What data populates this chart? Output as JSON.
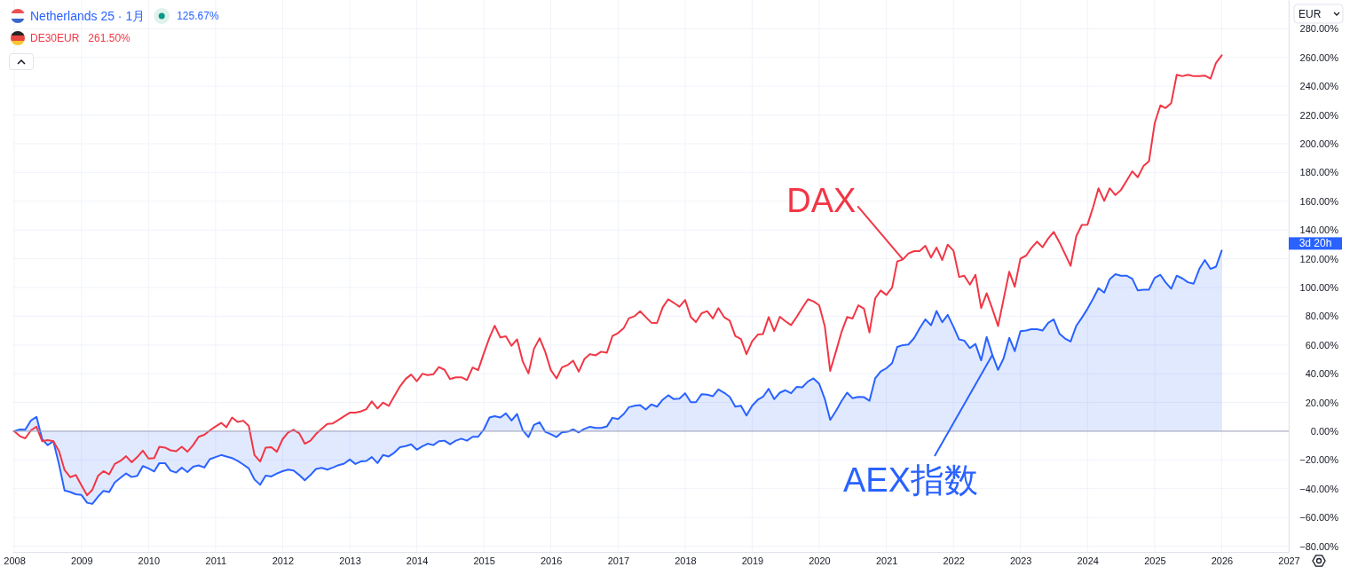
{
  "chart_data": {
    "type": "line",
    "x": [
      "2008-01",
      "2008-02",
      "2008-03",
      "2008-04",
      "2008-05",
      "2008-06",
      "2008-07",
      "2008-08",
      "2008-09",
      "2008-10",
      "2008-11",
      "2008-12",
      "2009-01",
      "2009-02",
      "2009-03",
      "2009-04",
      "2009-05",
      "2009-06",
      "2009-07",
      "2009-08",
      "2009-09",
      "2009-10",
      "2009-11",
      "2009-12",
      "2010-01",
      "2010-02",
      "2010-03",
      "2010-04",
      "2010-05",
      "2010-06",
      "2010-07",
      "2010-08",
      "2010-09",
      "2010-10",
      "2010-11",
      "2010-12",
      "2011-01",
      "2011-02",
      "2011-03",
      "2011-04",
      "2011-05",
      "2011-06",
      "2011-07",
      "2011-08",
      "2011-09",
      "2011-10",
      "2011-11",
      "2011-12",
      "2012-01",
      "2012-02",
      "2012-03",
      "2012-04",
      "2012-05",
      "2012-06",
      "2012-07",
      "2012-08",
      "2012-09",
      "2012-10",
      "2012-11",
      "2012-12",
      "2013-01",
      "2013-02",
      "2013-03",
      "2013-04",
      "2013-05",
      "2013-06",
      "2013-07",
      "2013-08",
      "2013-09",
      "2013-10",
      "2013-11",
      "2013-12",
      "2014-01",
      "2014-02",
      "2014-03",
      "2014-04",
      "2014-05",
      "2014-06",
      "2014-07",
      "2014-08",
      "2014-09",
      "2014-10",
      "2014-11",
      "2014-12",
      "2015-01",
      "2015-02",
      "2015-03",
      "2015-04",
      "2015-05",
      "2015-06",
      "2015-07",
      "2015-08",
      "2015-09",
      "2015-10",
      "2015-11",
      "2015-12",
      "2016-01",
      "2016-02",
      "2016-03",
      "2016-04",
      "2016-05",
      "2016-06",
      "2016-07",
      "2016-08",
      "2016-09",
      "2016-10",
      "2016-11",
      "2016-12",
      "2017-01",
      "2017-02",
      "2017-03",
      "2017-04",
      "2017-05",
      "2017-06",
      "2017-07",
      "2017-08",
      "2017-09",
      "2017-10",
      "2017-11",
      "2017-12",
      "2018-01",
      "2018-02",
      "2018-03",
      "2018-04",
      "2018-05",
      "2018-06",
      "2018-07",
      "2018-08",
      "2018-09",
      "2018-10",
      "2018-11",
      "2018-12",
      "2019-01",
      "2019-02",
      "2019-03",
      "2019-04",
      "2019-05",
      "2019-06",
      "2019-07",
      "2019-08",
      "2019-09",
      "2019-10",
      "2019-11",
      "2019-12",
      "2020-01",
      "2020-02",
      "2020-03",
      "2020-04",
      "2020-05",
      "2020-06",
      "2020-07",
      "2020-08",
      "2020-09",
      "2020-10",
      "2020-11",
      "2020-12",
      "2021-01",
      "2021-02",
      "2021-03",
      "2021-04",
      "2021-05",
      "2021-06",
      "2021-07",
      "2021-08",
      "2021-09",
      "2021-10",
      "2021-11",
      "2021-12",
      "2022-01",
      "2022-02",
      "2022-03",
      "2022-04",
      "2022-05",
      "2022-06",
      "2022-07",
      "2022-08",
      "2022-09",
      "2022-10",
      "2022-11",
      "2022-12",
      "2023-01",
      "2023-02",
      "2023-03",
      "2023-04",
      "2023-05",
      "2023-06",
      "2023-07",
      "2023-08",
      "2023-09",
      "2023-10",
      "2023-11",
      "2023-12",
      "2024-01",
      "2024-02",
      "2024-03",
      "2024-04",
      "2024-05",
      "2024-06",
      "2024-07",
      "2024-08",
      "2024-09",
      "2024-10",
      "2024-11",
      "2024-12",
      "2025-01",
      "2025-02",
      "2025-03",
      "2025-04",
      "2025-05",
      "2025-06",
      "2025-07",
      "2025-08",
      "2025-09",
      "2025-10",
      "2025-11",
      "2025-12",
      "2026-01"
    ],
    "xlim": [
      "2007-12-22",
      "2027-01-01"
    ],
    "xticks": [
      "2008",
      "2009",
      "2010",
      "2011",
      "2012",
      "2013",
      "2014",
      "2015",
      "2016",
      "2017",
      "2018",
      "2019",
      "2020",
      "2021",
      "2022",
      "2023",
      "2024",
      "2025",
      "2026",
      "2027"
    ],
    "ylim": [
      -84,
      300
    ],
    "yticks": [
      {
        "value": -80,
        "label": "−80.00%"
      },
      {
        "value": -60,
        "label": "−60.00%"
      },
      {
        "value": -40,
        "label": "−40.00%"
      },
      {
        "value": -20,
        "label": "−20.00%"
      },
      {
        "value": 0,
        "label": "0.00%"
      },
      {
        "value": 20,
        "label": "20.00%"
      },
      {
        "value": 40,
        "label": "40.00%"
      },
      {
        "value": 60,
        "label": "60.00%"
      },
      {
        "value": 80,
        "label": "80.00%"
      },
      {
        "value": 100,
        "label": "100.00%"
      },
      {
        "value": 120,
        "label": "120.00%"
      },
      {
        "value": 140,
        "label": "140.00%"
      },
      {
        "value": 160,
        "label": "160.00%"
      },
      {
        "value": 180,
        "label": "180.00%"
      },
      {
        "value": 200,
        "label": "200.00%"
      },
      {
        "value": 220,
        "label": "220.00%"
      },
      {
        "value": 240,
        "label": "240.00%"
      },
      {
        "value": 260,
        "label": "260.00%"
      },
      {
        "value": 280,
        "label": "280.00%"
      }
    ],
    "grid": true,
    "legend": "top left",
    "ref_lines": [
      {
        "axis": "y",
        "value": 0,
        "color": "#9fa3b8"
      }
    ],
    "series": [
      {
        "name": "Netherlands 25 · 1月",
        "type": "area",
        "color": "#2962ff",
        "values": [
          0,
          1.2,
          1,
          7.5,
          10,
          -5.6,
          -9.7,
          -7,
          -23.2,
          -41.3,
          -42.3,
          -43.9,
          -44.4,
          -49.8,
          -50.6,
          -45.6,
          -41.5,
          -42.3,
          -35.7,
          -32.5,
          -29.4,
          -31.9,
          -31.1,
          -24.3,
          -25.9,
          -28,
          -22.2,
          -22.2,
          -27.4,
          -28.8,
          -25.3,
          -28.4,
          -24.7,
          -23.8,
          -25.3,
          -19.5,
          -18,
          -16.6,
          -17.6,
          -18.7,
          -20.7,
          -23.2,
          -25.9,
          -33.6,
          -37.3,
          -30.9,
          -31.5,
          -29.4,
          -27.8,
          -26.7,
          -27.4,
          -30.5,
          -34.2,
          -30.5,
          -26.3,
          -25.5,
          -26.7,
          -25.3,
          -23.6,
          -22.6,
          -19.7,
          -22.8,
          -21.1,
          -20.7,
          -18,
          -22.2,
          -16.6,
          -17.6,
          -14.9,
          -11.2,
          -10.4,
          -9.1,
          -12.9,
          -10.4,
          -8.7,
          -9.7,
          -7,
          -6.6,
          -9.1,
          -6.6,
          -5.2,
          -6.6,
          -3.9,
          -3.9,
          1.2,
          9.5,
          10.5,
          9.5,
          12.4,
          7.4,
          12,
          0.6,
          -4.1,
          4.3,
          6.2,
          -0.4,
          -2.1,
          -4.1,
          -0.8,
          -0.4,
          1.2,
          -0.8,
          1.6,
          3.1,
          2.3,
          2.3,
          3.3,
          9.3,
          8.5,
          12,
          16.7,
          17.7,
          18.1,
          15.1,
          18.6,
          17.1,
          21.9,
          25,
          22.3,
          22.7,
          26.4,
          20.2,
          20.2,
          25.8,
          25.4,
          24.3,
          29.1,
          26.8,
          23.9,
          17.1,
          17.7,
          10.9,
          17.7,
          21.9,
          23.9,
          29.5,
          22.3,
          26.8,
          28.5,
          26.4,
          30.9,
          30.5,
          34.6,
          36.7,
          33,
          22.3,
          7.8,
          14,
          20.8,
          26.8,
          22.9,
          23.9,
          23.7,
          21.2,
          36.7,
          41.5,
          43.8,
          47.3,
          58.6,
          59.9,
          60.3,
          64.8,
          71.6,
          77.8,
          73.7,
          83.6,
          75.8,
          80.9,
          72.7,
          63.8,
          63,
          57.8,
          60.7,
          49.3,
          65.5,
          53.1,
          42.7,
          50.6,
          65,
          55.7,
          69.6,
          70,
          71,
          71,
          70,
          75.4,
          77.8,
          67.9,
          64.4,
          62.4,
          73.3,
          78.9,
          85.1,
          92.3,
          99.5,
          96.4,
          105.7,
          109.2,
          108.2,
          108.2,
          106.1,
          97.9,
          98.5,
          98.5,
          106.7,
          108.8,
          103.6,
          99.1,
          108.2,
          106.3,
          103.6,
          102.6,
          112.9,
          119.1,
          112.9,
          114.5,
          125.67
        ]
      },
      {
        "name": "DE30EUR",
        "color": "#f23645",
        "values": [
          0,
          -3.5,
          -5,
          0.6,
          3.1,
          -7,
          -6.2,
          -7,
          -13.9,
          -27,
          -32,
          -30.5,
          -37.7,
          -44.6,
          -40.8,
          -31.1,
          -27.8,
          -30,
          -22.8,
          -20.7,
          -17.4,
          -21.6,
          -18,
          -13.5,
          -19,
          -18.7,
          -10.8,
          -11.4,
          -13.3,
          -13.9,
          -10.8,
          -14.3,
          -9.7,
          -3.9,
          -2.5,
          0.6,
          3.3,
          5.8,
          2.7,
          9.5,
          6.4,
          7.3,
          3.7,
          -16.6,
          -21.1,
          -11.4,
          -11.2,
          -14.3,
          -5.6,
          -0.8,
          1,
          -1.5,
          -8.7,
          -6.6,
          -1.9,
          1.7,
          5,
          5.4,
          7.9,
          10.4,
          12.9,
          12.9,
          13.7,
          15.3,
          20.7,
          15.8,
          19.9,
          17.6,
          24.5,
          31.1,
          36.3,
          39.4,
          34.8,
          40,
          39,
          39.6,
          44.6,
          42.7,
          36.3,
          37.5,
          37.5,
          35.6,
          44.3,
          42.5,
          54.2,
          65.2,
          73.4,
          65.2,
          66,
          59.4,
          63.9,
          48.5,
          40.2,
          57.3,
          64.7,
          55.3,
          42.5,
          36.7,
          44.3,
          46,
          49.1,
          41.4,
          50.1,
          53.6,
          52.8,
          55.3,
          54.6,
          66.2,
          68.3,
          71.8,
          78.6,
          80,
          83.5,
          79.4,
          75.5,
          75.3,
          86.2,
          91.8,
          89.3,
          86.6,
          91.3,
          79.4,
          75.9,
          82.1,
          83.5,
          78.4,
          85.6,
          79.4,
          76.9,
          66.2,
          64.1,
          53.6,
          62.5,
          67.2,
          67.6,
          79.4,
          69.7,
          79.6,
          76.5,
          73.8,
          79.6,
          85.8,
          91.8,
          90.3,
          87.6,
          72.8,
          41.9,
          55.3,
          68.7,
          79.4,
          78.4,
          87.6,
          85.2,
          68.7,
          92.4,
          97.9,
          94.8,
          99.9,
          118.1,
          119.5,
          123.7,
          125.3,
          125.3,
          129,
          120.8,
          127.8,
          119.1,
          129.8,
          125.7,
          107.3,
          108.2,
          102,
          108.8,
          85.7,
          96,
          85.1,
          73.1,
          91.7,
          110.9,
          100.5,
          120.1,
          122.2,
          127.4,
          131.9,
          128,
          134,
          138.7,
          131.5,
          123.2,
          115,
          135.6,
          143.5,
          143.7,
          156,
          169,
          160.2,
          169,
          164.3,
          167.8,
          174.2,
          180.8,
          176.7,
          184.5,
          187.8,
          214.3,
          226.7,
          224.8,
          228.3,
          248,
          247,
          248,
          247,
          247,
          247.4,
          245.3,
          256.3,
          261.5
        ]
      }
    ],
    "annotations": [
      "125.67%",
      "261.50%",
      "EUR",
      "3d 20h",
      {
        "text": "DAX",
        "x": "2021-04",
        "y": 119.5
      },
      {
        "text": "AEX指数",
        "x": "2022-08",
        "y": 53.1
      }
    ]
  }
}
